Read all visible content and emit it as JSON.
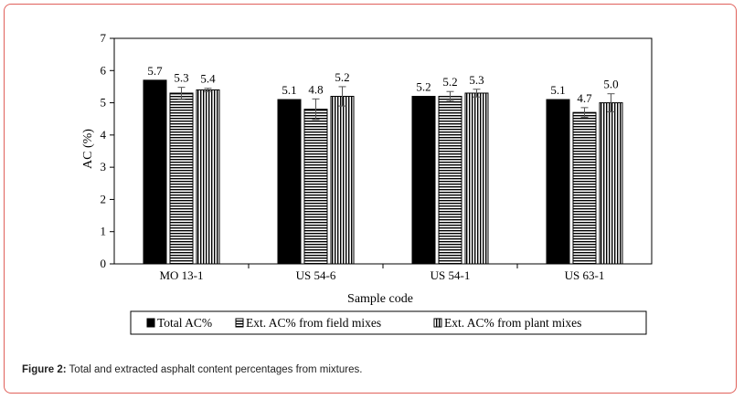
{
  "chart_data": {
    "type": "bar",
    "xlabel": "Sample code",
    "ylabel": "AC (%)",
    "ylim": [
      0,
      7
    ],
    "yticks": [
      "0",
      "1",
      "2",
      "3",
      "4",
      "5",
      "6",
      "7"
    ],
    "categories": [
      "MO 13-1",
      "US 54-6",
      "US 54-1",
      "US 63-1"
    ],
    "series": [
      {
        "name": "Total AC%",
        "pattern": "solid",
        "values": [
          5.7,
          5.1,
          5.2,
          5.1
        ],
        "labels": [
          "5.7",
          "5.1",
          "5.2",
          "5.1"
        ],
        "errors": [
          0,
          0,
          0,
          0
        ]
      },
      {
        "name": "Ext. AC% from field mixes",
        "pattern": "horizontal-lines",
        "values": [
          5.3,
          4.8,
          5.2,
          4.7
        ],
        "labels": [
          "5.3",
          "4.8",
          "5.2",
          "4.7"
        ],
        "errors": [
          0.18,
          0.32,
          0.15,
          0.15
        ]
      },
      {
        "name": "Ext. AC% from plant mixes",
        "pattern": "vertical-lines",
        "values": [
          5.4,
          5.2,
          5.3,
          5.0
        ],
        "labels": [
          "5.4",
          "5.2",
          "5.3",
          "5.0"
        ],
        "errors": [
          0.05,
          0.3,
          0.12,
          0.28
        ]
      }
    ],
    "legend": "bottom",
    "grid": false,
    "bar_color": "#000000"
  },
  "caption": {
    "label": "Figure 2:",
    "text": " Total and extracted asphalt content percentages from mixtures."
  }
}
